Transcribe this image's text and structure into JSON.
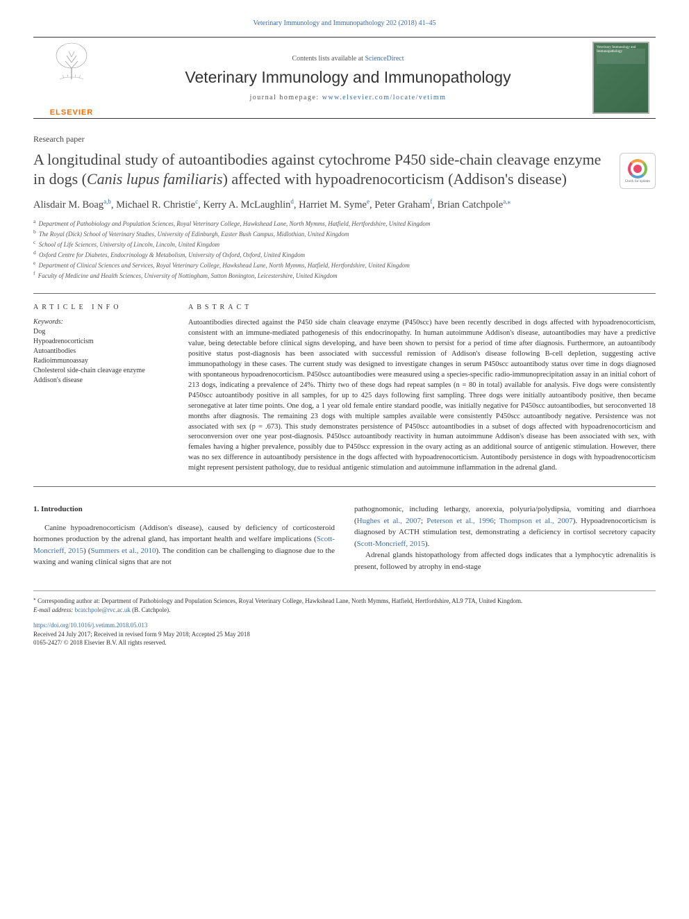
{
  "running_header": {
    "text_prefix": "",
    "link": "Veterinary Immunology and Immunopathology 202 (2018) 41–45"
  },
  "banner": {
    "contents_prefix": "Contents lists available at ",
    "contents_link": "ScienceDirect",
    "journal_title": "Veterinary Immunology and Immunopathology",
    "homepage_prefix": "journal homepage: ",
    "homepage_link": "www.elsevier.com/locate/vetimm",
    "elsevier_label": "ELSEVIER",
    "cover_text": "Veterinary Immunology and Immunopathology"
  },
  "article": {
    "type": "Research paper",
    "title_part1": "A longitudinal study of autoantibodies against cytochrome P450 side-chain cleavage enzyme in dogs (",
    "title_italic": "Canis lupus familiaris",
    "title_part2": ") affected with hypoadrenocorticism (Addison's disease)",
    "check_updates_label": "Check for updates"
  },
  "authors": [
    {
      "name": "Alisdair M. Boag",
      "aff": "a,b"
    },
    {
      "name": "Michael R. Christie",
      "aff": "c"
    },
    {
      "name": "Kerry A. McLaughlin",
      "aff": "d"
    },
    {
      "name": "Harriet M. Syme",
      "aff": "e"
    },
    {
      "name": "Peter Graham",
      "aff": "f"
    },
    {
      "name": "Brian Catchpole",
      "aff": "a,",
      "star": "⁎"
    }
  ],
  "affiliations": [
    {
      "key": "a",
      "text": "Department of Pathobiology and Population Sciences, Royal Veterinary College, Hawkshead Lane, North Mymms, Hatfield, Hertfordshire, United Kingdom"
    },
    {
      "key": "b",
      "text": "The Royal (Dick) School of Veterinary Studies, University of Edinburgh, Easter Bush Campus, Midlothian, United Kingdom"
    },
    {
      "key": "c",
      "text": "School of Life Sciences, University of Lincoln, Lincoln, United Kingdom"
    },
    {
      "key": "d",
      "text": "Oxford Centre for Diabetes, Endocrinology & Metabolism, University of Oxford, Oxford, United Kingdom"
    },
    {
      "key": "e",
      "text": "Department of Clinical Sciences and Services, Royal Veterinary College, Hawkshead Lane, North Mymms, Hatfield, Hertfordshire, United Kingdom"
    },
    {
      "key": "f",
      "text": "Faculty of Medicine and Health Sciences, University of Nottingham, Sutton Bonington, Leicestershire, United Kingdom"
    }
  ],
  "labels": {
    "article_info": "ARTICLE INFO",
    "abstract": "ABSTRACT",
    "keywords_heading": "Keywords:"
  },
  "keywords": [
    "Dog",
    "Hypoadrenocorticism",
    "Autoantibodies",
    "Radioimmunoassay",
    "Cholesterol side-chain cleavage enzyme",
    "Addison's disease"
  ],
  "abstract": "Autoantibodies directed against the P450 side chain cleavage enzyme (P450scc) have been recently described in dogs affected with hypoadrenocorticism, consistent with an immune-mediated pathogenesis of this endocrinopathy. In human autoimmune Addison's disease, autoantibodies may have a predictive value, being detectable before clinical signs developing, and have been shown to persist for a period of time after diagnosis. Furthermore, an autoantibody positive status post-diagnosis has been associated with successful remission of Addison's disease following B-cell depletion, suggesting active immunopathology in these cases. The current study was designed to investigate changes in serum P450scc autoantibody status over time in dogs diagnosed with spontaneous hypoadrenocorticism. P450scc autoantibodies were measured using a species-specific radio-immunoprecipitation assay in an initial cohort of 213 dogs, indicating a prevalence of 24%. Thirty two of these dogs had repeat samples (n = 80 in total) available for analysis. Five dogs were consistently P450scc autoantibody positive in all samples, for up to 425 days following first sampling. Three dogs were initially autoantibody positive, then became seronegative at later time points. One dog, a 1 year old female entire standard poodle, was initially negative for P450scc autoantibodies, but seroconverted 18 months after diagnosis. The remaining 23 dogs with multiple samples available were consistently P450scc autoantibody negative. Persistence was not associated with sex (p = .673). This study demonstrates persistence of P450scc autoantibodies in a subset of dogs affected with hypoadrenocorticism and seroconversion over one year post-diagnosis. P450scc autoantibody reactivity in human autoimmune Addison's disease has been associated with sex, with females having a higher prevalence, possibly due to P450scc expression in the ovary acting as an additional source of antigenic stimulation. However, there was no sex difference in autoantibody persistence in the dogs affected with hypoadrenocorticism. Autontibody persistence in dogs with hypoadrenocorticism might represent persistent pathology, due to residual antigenic stimulation and autoimmune inflammation in the adrenal gland.",
  "body": {
    "intro_heading": "1. Introduction",
    "left_p1_a": "Canine hypoadrenocorticism (Addison's disease), caused by deficiency of corticosteroid hormones production by the adrenal gland, has important health and welfare implications (",
    "left_ref1": "Scott-Moncrieff, 2015",
    "left_p1_b": ") (",
    "left_ref2": "Summers et al., 2010",
    "left_p1_c": "). The condition can be challenging to diagnose due to the waxing and waning clinical signs that are not",
    "right_p1_a": "pathognomonic, including lethargy, anorexia, polyuria/polydipsia, vomiting and diarrhoea (",
    "right_ref1": "Hughes et al., 2007",
    "right_p1_b": "; ",
    "right_ref2": "Peterson et al., 1996",
    "right_p1_c": "; ",
    "right_ref3": "Thompson et al., 2007",
    "right_p1_d": "). Hypoadrenocorticism is diagnosed by ACTH stimulation test, demonstrating a deficiency in cortisol secretory capacity (",
    "right_ref4": "Scott-Moncrieff, 2015",
    "right_p1_e": ").",
    "right_p2": "Adrenal glands histopathology from affected dogs indicates that a lymphocytic adrenalitis is present, followed by atrophy in end-stage"
  },
  "footnotes": {
    "corr_marker": "⁎",
    "corr_text": "Corresponding author at: Department of Pathobiology and Population Sciences, Royal Veterinary College, Hawkshead Lane, North Mymms, Hatfield, Hertfordshire, AL9 7TA, United Kingdom.",
    "email_label": "E-mail address: ",
    "email": "bcatchpole@rvc.ac.uk",
    "email_suffix": " (B. Catchpole)."
  },
  "doi_block": {
    "doi": "https://doi.org/10.1016/j.vetimm.2018.05.013",
    "history": "Received 24 July 2017; Received in revised form 9 May 2018; Accepted 25 May 2018",
    "copyright": "0165-2427/ © 2018 Elsevier B.V. All rights reserved."
  },
  "colors": {
    "link": "#3a6ca8",
    "text": "#333333",
    "elsevier_orange": "#ff6a00"
  }
}
